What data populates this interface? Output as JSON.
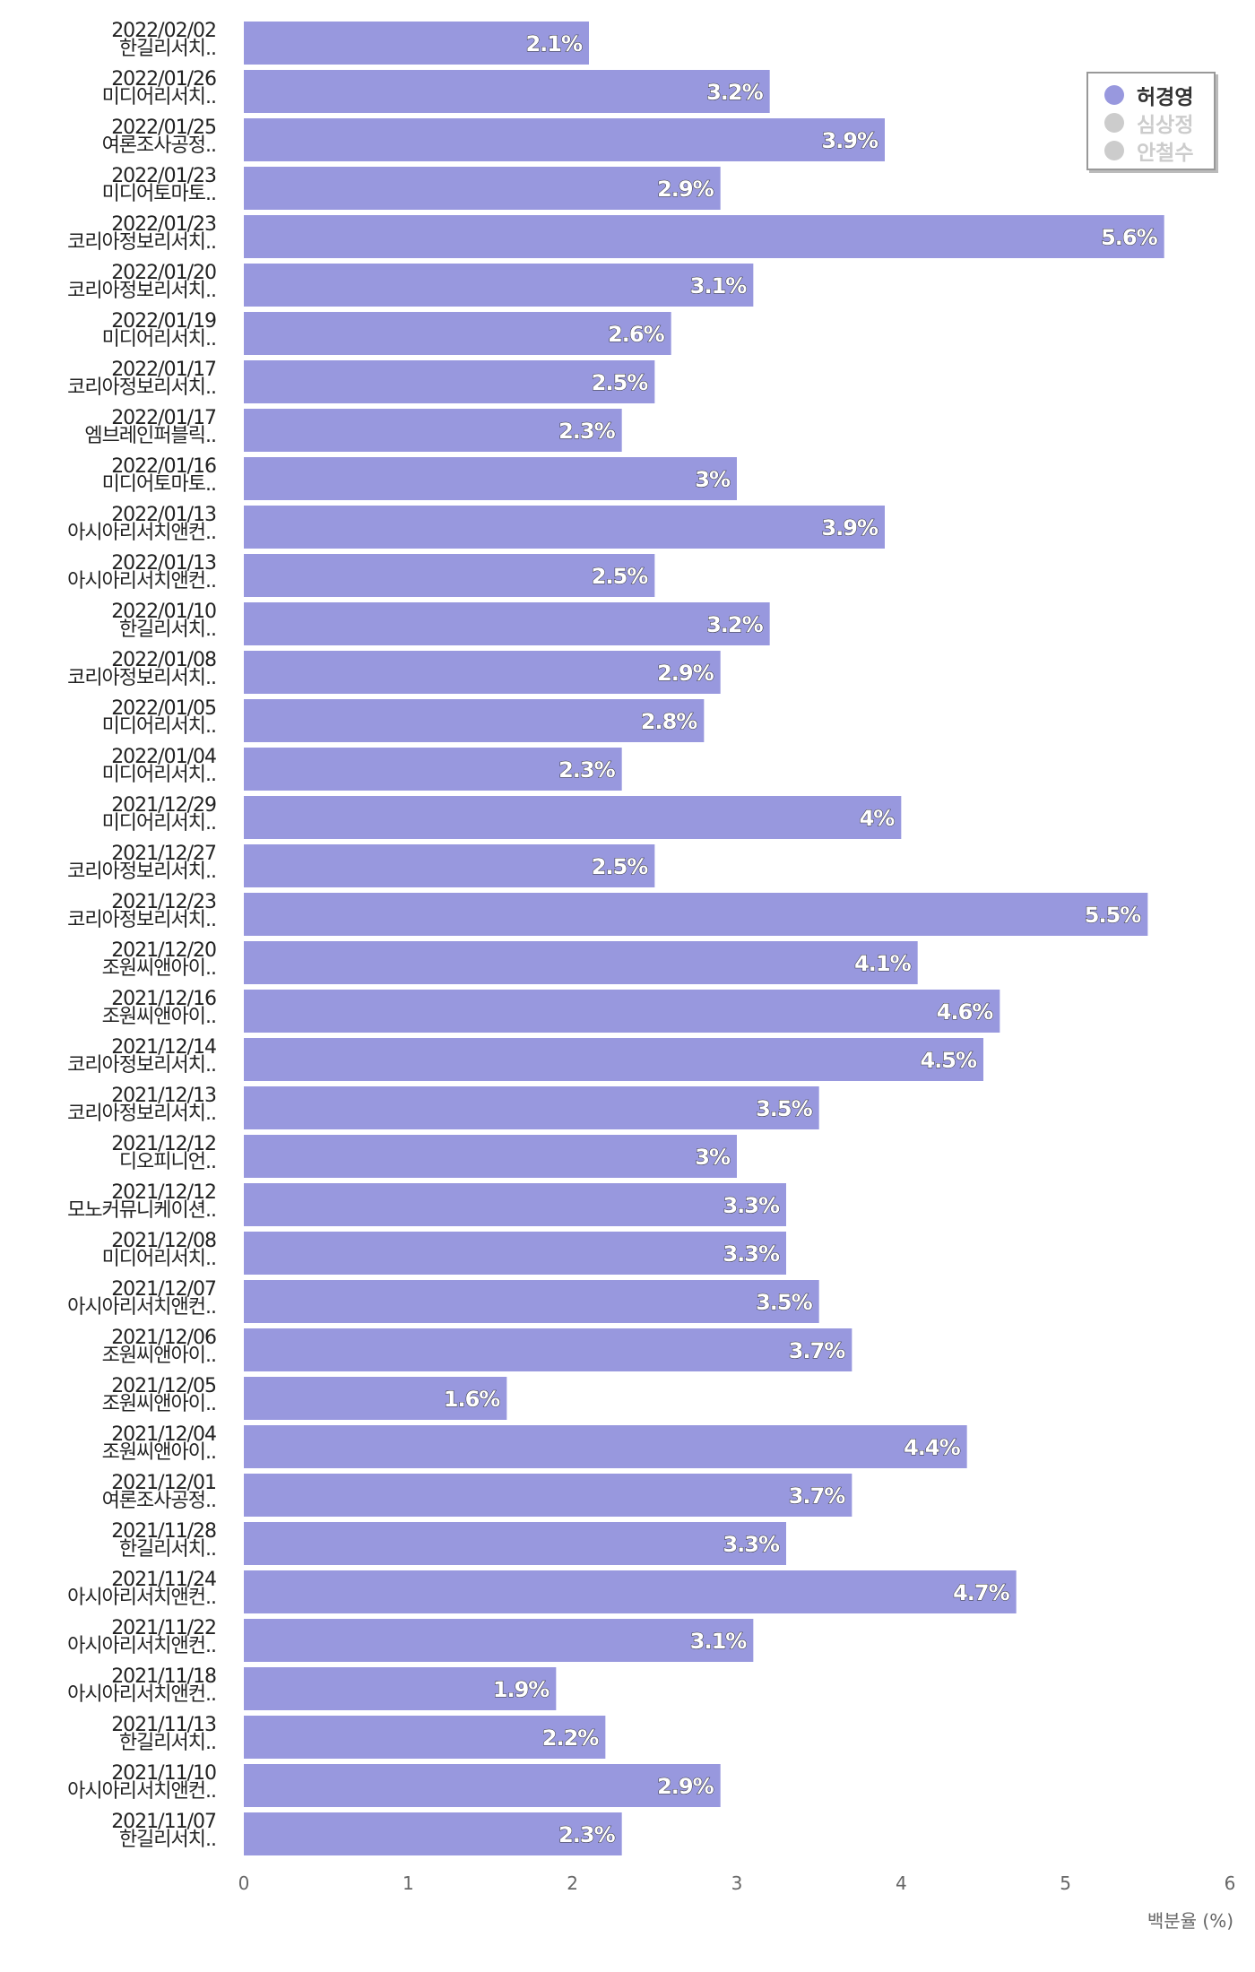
{
  "chart_data": {
    "type": "bar",
    "orientation": "horizontal",
    "xlabel": "백분율 (%)",
    "xlim": [
      0,
      6
    ],
    "xticks": [
      0,
      1,
      2,
      3,
      4,
      5,
      6
    ],
    "bar_color": "#9898de",
    "legend": {
      "placement": "top-right",
      "items": [
        {
          "label": "허경영",
          "color": "#9898de",
          "active": true
        },
        {
          "label": "심상정",
          "color": "#cccccc",
          "active": false
        },
        {
          "label": "안철수",
          "color": "#cccccc",
          "active": false
        }
      ]
    },
    "categories": [
      {
        "date": "2022/02/02",
        "name": "한길리서치.."
      },
      {
        "date": "2022/01/26",
        "name": "미디어리서치.."
      },
      {
        "date": "2022/01/25",
        "name": "여론조사공정.."
      },
      {
        "date": "2022/01/23",
        "name": "미디어토마토.."
      },
      {
        "date": "2022/01/23",
        "name": "코리아정보리서치.."
      },
      {
        "date": "2022/01/20",
        "name": "코리아정보리서치.."
      },
      {
        "date": "2022/01/19",
        "name": "미디어리서치.."
      },
      {
        "date": "2022/01/17",
        "name": "코리아정보리서치.."
      },
      {
        "date": "2022/01/17",
        "name": "엠브레인퍼블릭.."
      },
      {
        "date": "2022/01/16",
        "name": "미디어토마토.."
      },
      {
        "date": "2022/01/13",
        "name": "아시아리서치앤컨.."
      },
      {
        "date": "2022/01/13",
        "name": "아시아리서치앤컨.."
      },
      {
        "date": "2022/01/10",
        "name": "한길리서치.."
      },
      {
        "date": "2022/01/08",
        "name": "코리아정보리서치.."
      },
      {
        "date": "2022/01/05",
        "name": "미디어리서치.."
      },
      {
        "date": "2022/01/04",
        "name": "미디어리서치.."
      },
      {
        "date": "2021/12/29",
        "name": "미디어리서치.."
      },
      {
        "date": "2021/12/27",
        "name": "코리아정보리서치.."
      },
      {
        "date": "2021/12/23",
        "name": "코리아정보리서치.."
      },
      {
        "date": "2021/12/20",
        "name": "조원씨앤아이.."
      },
      {
        "date": "2021/12/16",
        "name": "조원씨앤아이.."
      },
      {
        "date": "2021/12/14",
        "name": "코리아정보리서치.."
      },
      {
        "date": "2021/12/13",
        "name": "코리아정보리서치.."
      },
      {
        "date": "2021/12/12",
        "name": "디오피니언.."
      },
      {
        "date": "2021/12/12",
        "name": "모노커뮤니케이션.."
      },
      {
        "date": "2021/12/08",
        "name": "미디어리서치.."
      },
      {
        "date": "2021/12/07",
        "name": "아시아리서치앤컨.."
      },
      {
        "date": "2021/12/06",
        "name": "조원씨앤아이.."
      },
      {
        "date": "2021/12/05",
        "name": "조원씨앤아이.."
      },
      {
        "date": "2021/12/04",
        "name": "조원씨앤아이.."
      },
      {
        "date": "2021/12/01",
        "name": "여론조사공정.."
      },
      {
        "date": "2021/11/28",
        "name": "한길리서치.."
      },
      {
        "date": "2021/11/24",
        "name": "아시아리서치앤컨.."
      },
      {
        "date": "2021/11/22",
        "name": "아시아리서치앤컨.."
      },
      {
        "date": "2021/11/18",
        "name": "아시아리서치앤컨.."
      },
      {
        "date": "2021/11/13",
        "name": "한길리서치.."
      },
      {
        "date": "2021/11/10",
        "name": "아시아리서치앤컨.."
      },
      {
        "date": "2021/11/07",
        "name": "한길리서치.."
      }
    ],
    "series": [
      {
        "name": "허경영",
        "values": [
          2.1,
          3.2,
          3.9,
          2.9,
          5.6,
          3.1,
          2.6,
          2.5,
          2.3,
          3,
          3.9,
          2.5,
          3.2,
          2.9,
          2.8,
          2.3,
          4,
          2.5,
          5.5,
          4.1,
          4.6,
          4.5,
          3.5,
          3,
          3.3,
          3.3,
          3.5,
          3.7,
          1.6,
          4.4,
          3.7,
          3.3,
          4.7,
          3.1,
          1.9,
          2.2,
          2.9,
          2.3
        ]
      }
    ]
  }
}
